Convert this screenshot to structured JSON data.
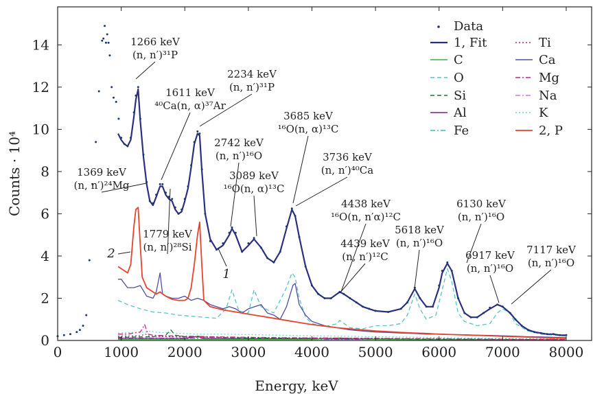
{
  "chart_data": {
    "type": "line",
    "xlabel": "Energy, keV",
    "ylabel": "Counts · 10⁴",
    "xlim": [
      0,
      8400
    ],
    "ylim": [
      0,
      15.8
    ],
    "xticks": [
      0,
      1000,
      2000,
      3000,
      4000,
      5000,
      6000,
      7000,
      8000
    ],
    "yticks": [
      0,
      2,
      4,
      6,
      8,
      10,
      12,
      14
    ],
    "grid": false,
    "legend_position": "top-right",
    "legend": [
      {
        "key": "data",
        "label": "Data"
      },
      {
        "key": "fit",
        "label": "1, Fit"
      },
      {
        "key": "C",
        "label": "C"
      },
      {
        "key": "O",
        "label": "O"
      },
      {
        "key": "Si",
        "label": "Si"
      },
      {
        "key": "Al",
        "label": "Al"
      },
      {
        "key": "Fe",
        "label": "Fe"
      },
      {
        "key": "Ti",
        "label": "Ti"
      },
      {
        "key": "Ca",
        "label": "Ca"
      },
      {
        "key": "Mg",
        "label": "Mg"
      },
      {
        "key": "Na",
        "label": "Na"
      },
      {
        "key": "K",
        "label": "K"
      },
      {
        "key": "P",
        "label": "2, P"
      }
    ],
    "colors": {
      "data": "#1b3a6b",
      "fit": "#2b2f7f",
      "C": "#3cb043",
      "O": "#56c2c6",
      "Si": "#1e6b32",
      "Al": "#7a1d8a",
      "Fe": "#3fbfa8",
      "Ti": "#9b2f7a",
      "Ca": "#4a4fa3",
      "Mg": "#c0247a",
      "Na": "#c77ad6",
      "K": "#6ccfe0",
      "P": "#e8412c"
    },
    "series": [
      {
        "key": "data",
        "style": "dots",
        "x": [
          0,
          100,
          200,
          300,
          350,
          400,
          450,
          500,
          550,
          600,
          650,
          700,
          720,
          740,
          760,
          780,
          800,
          820,
          850,
          880,
          920,
          960,
          1000,
          1050,
          1100,
          1150,
          1200,
          1230,
          1266,
          1300,
          1350,
          1400,
          1450,
          1500,
          1550,
          1611,
          1650,
          1700,
          1750,
          1800,
          1850,
          1900,
          1950,
          2000,
          2050,
          2100,
          2150,
          2200,
          2234,
          2270,
          2320,
          2400,
          2500,
          2600,
          2700,
          2742,
          2800,
          2900,
          3000,
          3089,
          3200,
          3300,
          3400,
          3500,
          3600,
          3685,
          3736,
          3800,
          3900,
          4000,
          4100,
          4200,
          4300,
          4438,
          4500,
          4600,
          4700,
          4800,
          4900,
          5000,
          5200,
          5400,
          5500,
          5618,
          5700,
          5800,
          5900,
          6000,
          6050,
          6130,
          6200,
          6300,
          6400,
          6500,
          6600,
          6700,
          6800,
          6917,
          7000,
          7117,
          7200,
          7300,
          7400,
          7500,
          7600,
          7700,
          7800,
          7900,
          8000
        ],
        "y": [
          0.2,
          0.25,
          0.3,
          0.4,
          0.5,
          0.7,
          1.2,
          3.8,
          7.4,
          9.4,
          11.8,
          14.2,
          14.3,
          14.9,
          14.1,
          14.5,
          14.1,
          13.5,
          12.0,
          11.5,
          11.3,
          10.5,
          9.6,
          9.3,
          9.2,
          9.6,
          10.8,
          11.6,
          12.0,
          10.5,
          8.8,
          7.5,
          6.6,
          6.5,
          6.9,
          7.4,
          7.4,
          7.0,
          6.8,
          6.7,
          6.3,
          6.0,
          6.2,
          6.7,
          7.3,
          8.3,
          9.4,
          9.9,
          9.8,
          8.1,
          6.0,
          4.7,
          4.3,
          4.6,
          5.1,
          5.35,
          5.1,
          4.2,
          4.6,
          4.85,
          4.4,
          3.9,
          3.7,
          4.2,
          5.4,
          6.25,
          5.9,
          4.9,
          3.5,
          2.6,
          2.2,
          2.0,
          2.0,
          2.3,
          2.2,
          2.0,
          1.8,
          1.6,
          1.5,
          1.4,
          1.35,
          1.5,
          1.8,
          2.5,
          2.0,
          1.6,
          1.6,
          2.6,
          3.3,
          3.7,
          3.3,
          2.0,
          1.3,
          1.1,
          1.1,
          1.3,
          1.55,
          1.7,
          1.6,
          1.3,
          1.0,
          0.7,
          0.5,
          0.4,
          0.35,
          0.3,
          0.3,
          0.25,
          0.25
        ]
      },
      {
        "key": "fit",
        "style": "solid",
        "x": [
          950,
          1000,
          1050,
          1100,
          1150,
          1200,
          1230,
          1266,
          1300,
          1350,
          1400,
          1450,
          1500,
          1550,
          1611,
          1650,
          1700,
          1750,
          1800,
          1850,
          1900,
          1950,
          2000,
          2050,
          2100,
          2150,
          2200,
          2234,
          2270,
          2320,
          2400,
          2500,
          2600,
          2700,
          2742,
          2800,
          2900,
          3000,
          3089,
          3200,
          3300,
          3400,
          3500,
          3600,
          3685,
          3736,
          3800,
          3900,
          4000,
          4100,
          4200,
          4300,
          4438,
          4500,
          4600,
          4700,
          4800,
          4900,
          5000,
          5200,
          5400,
          5500,
          5618,
          5700,
          5800,
          5900,
          6000,
          6050,
          6130,
          6200,
          6300,
          6400,
          6500,
          6600,
          6700,
          6800,
          6917,
          7000,
          7117,
          7200,
          7300,
          7400,
          7500,
          7600,
          7700,
          7800,
          7900,
          8000
        ],
        "y": [
          9.8,
          9.5,
          9.3,
          9.2,
          9.5,
          10.6,
          11.4,
          11.9,
          10.4,
          8.7,
          7.4,
          6.6,
          6.4,
          6.8,
          7.3,
          7.3,
          6.9,
          6.7,
          6.6,
          6.2,
          6.0,
          6.1,
          6.6,
          7.2,
          8.2,
          9.3,
          9.8,
          9.7,
          8.0,
          6.0,
          4.8,
          4.3,
          4.5,
          5.0,
          5.3,
          5.0,
          4.2,
          4.5,
          4.8,
          4.4,
          3.9,
          3.7,
          4.2,
          5.3,
          6.2,
          5.9,
          4.9,
          3.5,
          2.6,
          2.2,
          2.0,
          2.0,
          2.3,
          2.2,
          2.0,
          1.8,
          1.6,
          1.5,
          1.4,
          1.35,
          1.5,
          1.8,
          2.45,
          2.0,
          1.6,
          1.6,
          2.5,
          3.2,
          3.65,
          3.3,
          2.0,
          1.3,
          1.1,
          1.1,
          1.3,
          1.5,
          1.7,
          1.6,
          1.3,
          1.0,
          0.7,
          0.5,
          0.4,
          0.35,
          0.3,
          0.3,
          0.25,
          0.25
        ]
      },
      {
        "key": "P",
        "style": "solid",
        "x": [
          950,
          1000,
          1050,
          1100,
          1150,
          1200,
          1230,
          1266,
          1300,
          1330,
          1400,
          1500,
          1550,
          1611,
          1650,
          1700,
          1800,
          1900,
          2000,
          2050,
          2100,
          2150,
          2200,
          2234,
          2270,
          2300,
          2400,
          2600,
          2800,
          3000,
          3200,
          3400,
          3600,
          3800,
          4000,
          4200,
          4400,
          4600,
          4800,
          5000,
          5200,
          5400,
          5600,
          5800,
          6000,
          6200,
          6400,
          6600,
          6800,
          7000,
          7200,
          7400,
          7600,
          7800,
          8000
        ],
        "y": [
          3.5,
          3.4,
          3.3,
          3.2,
          3.6,
          5.4,
          6.2,
          6.3,
          4.5,
          3.0,
          2.5,
          2.3,
          2.2,
          2.3,
          2.2,
          2.1,
          1.95,
          1.9,
          1.9,
          2.0,
          2.5,
          3.6,
          5.0,
          5.6,
          3.5,
          1.9,
          1.6,
          1.45,
          1.35,
          1.25,
          1.15,
          1.05,
          0.95,
          0.85,
          0.75,
          0.68,
          0.6,
          0.55,
          0.5,
          0.45,
          0.42,
          0.38,
          0.35,
          0.33,
          0.3,
          0.28,
          0.26,
          0.24,
          0.22,
          0.2,
          0.18,
          0.16,
          0.14,
          0.12,
          0.1
        ]
      },
      {
        "key": "O",
        "style": "dashed",
        "x": [
          950,
          1100,
          1300,
          1500,
          1700,
          1900,
          2100,
          2300,
          2500,
          2650,
          2742,
          2850,
          3000,
          3089,
          3200,
          3400,
          3600,
          3685,
          3736,
          3800,
          3900,
          4000,
          4200,
          4400,
          4438,
          4600,
          4800,
          5000,
          5200,
          5400,
          5500,
          5618,
          5700,
          5800,
          5950,
          6050,
          6130,
          6200,
          6300,
          6400,
          6600,
          6800,
          6917,
          7000,
          7117,
          7200,
          7400,
          7600,
          7800,
          8000
        ],
        "y": [
          1.9,
          1.7,
          1.5,
          1.35,
          1.3,
          1.2,
          1.15,
          1.1,
          1.05,
          1.5,
          2.4,
          1.4,
          1.3,
          2.4,
          1.6,
          1.3,
          2.5,
          3.2,
          3.0,
          2.0,
          1.1,
          0.8,
          0.65,
          0.8,
          0.95,
          0.6,
          0.55,
          0.7,
          0.7,
          0.8,
          1.2,
          2.2,
          1.5,
          1.0,
          1.2,
          2.4,
          3.4,
          2.8,
          1.3,
          0.9,
          0.7,
          0.8,
          1.3,
          1.5,
          1.3,
          0.8,
          0.45,
          0.3,
          0.25,
          0.2
        ]
      },
      {
        "key": "Ca",
        "style": "solid",
        "x": [
          950,
          1000,
          1100,
          1200,
          1300,
          1400,
          1500,
          1550,
          1611,
          1650,
          1700,
          1800,
          1900,
          2000,
          2100,
          2200,
          2300,
          2400,
          2500,
          2600,
          2700,
          2800,
          2900,
          3000,
          3100,
          3200,
          3300,
          3400,
          3500,
          3600,
          3700,
          3736,
          3800,
          3900,
          4000,
          4200,
          4400,
          4600,
          4800,
          5000,
          5200,
          5400,
          5600,
          5800,
          6000,
          6200,
          6400,
          6600,
          6800,
          7000,
          7200,
          7400,
          7600,
          7800,
          8000
        ],
        "y": [
          2.9,
          2.9,
          2.5,
          2.5,
          2.6,
          2.1,
          2.0,
          2.3,
          3.2,
          2.2,
          2.1,
          2.0,
          2.0,
          2.1,
          1.9,
          2.0,
          1.9,
          1.7,
          1.6,
          1.5,
          1.6,
          1.5,
          1.3,
          1.5,
          1.6,
          1.7,
          1.3,
          1.2,
          1.0,
          1.6,
          2.6,
          2.7,
          1.7,
          1.2,
          0.9,
          0.7,
          0.6,
          0.5,
          0.45,
          0.4,
          0.38,
          0.35,
          0.33,
          0.3,
          0.3,
          0.28,
          0.27,
          0.25,
          0.24,
          0.22,
          0.2,
          0.18,
          0.17,
          0.15,
          0.13
        ]
      },
      {
        "key": "Mg",
        "style": "dashdot",
        "x": [
          950,
          1100,
          1200,
          1300,
          1369,
          1420,
          1500,
          1700,
          2000,
          2400,
          3000,
          4000,
          5000,
          6000,
          7000,
          8000
        ],
        "y": [
          0.3,
          0.3,
          0.35,
          0.4,
          0.75,
          0.3,
          0.25,
          0.22,
          0.2,
          0.18,
          0.15,
          0.12,
          0.1,
          0.08,
          0.06,
          0.05
        ]
      },
      {
        "key": "Si",
        "style": "dashed",
        "x": [
          950,
          1500,
          1700,
          1779,
          1850,
          2000,
          2500,
          3000,
          4000,
          5000,
          6000,
          7000,
          8000
        ],
        "y": [
          0.15,
          0.18,
          0.25,
          0.5,
          0.25,
          0.18,
          0.15,
          0.12,
          0.1,
          0.08,
          0.06,
          0.05,
          0.04
        ]
      },
      {
        "key": "K",
        "style": "dotted",
        "x": [
          950,
          1200,
          1400,
          1460,
          1520,
          1800,
          2200,
          2600,
          3000,
          4000,
          5000,
          6000,
          7000,
          8000
        ],
        "y": [
          0.35,
          0.38,
          0.4,
          0.45,
          0.4,
          0.35,
          0.3,
          0.3,
          0.28,
          0.22,
          0.18,
          0.14,
          0.1,
          0.08
        ]
      },
      {
        "key": "Ti",
        "style": "dotted",
        "x": [
          950,
          1300,
          1380,
          1450,
          2000,
          3000,
          4000,
          5000,
          6000,
          7000,
          8000
        ],
        "y": [
          0.2,
          0.22,
          0.3,
          0.2,
          0.16,
          0.14,
          0.12,
          0.1,
          0.08,
          0.06,
          0.05
        ]
      },
      {
        "key": "Na",
        "style": "dashdot",
        "x": [
          950,
          1500,
          2000,
          2500,
          3000,
          4000,
          5000,
          6000,
          7000,
          8000
        ],
        "y": [
          0.12,
          0.12,
          0.11,
          0.1,
          0.09,
          0.08,
          0.07,
          0.06,
          0.05,
          0.04
        ]
      },
      {
        "key": "Al",
        "style": "solid",
        "x": [
          950,
          1500,
          2000,
          2211,
          2300,
          3000,
          4000,
          5000,
          6000,
          7000,
          8000
        ],
        "y": [
          0.1,
          0.1,
          0.09,
          0.2,
          0.09,
          0.08,
          0.07,
          0.06,
          0.05,
          0.04,
          0.03
        ]
      },
      {
        "key": "Fe",
        "style": "dashdot",
        "x": [
          950,
          1500,
          2000,
          3000,
          4000,
          5000,
          6000,
          7000,
          8000
        ],
        "y": [
          0.08,
          0.08,
          0.07,
          0.06,
          0.05,
          0.05,
          0.04,
          0.03,
          0.03
        ]
      },
      {
        "key": "C",
        "style": "solid",
        "x": [
          950,
          2000,
          3000,
          4000,
          4439,
          5000,
          6000,
          7000,
          8000
        ],
        "y": [
          0.05,
          0.05,
          0.05,
          0.05,
          0.12,
          0.05,
          0.04,
          0.03,
          0.03
        ]
      }
    ],
    "annotations": [
      {
        "lines": [
          "1266 keV",
          "(n, n′)³¹P"
        ],
        "x": 1266,
        "y": 12.0
      },
      {
        "lines": [
          "1611 keV",
          "⁴⁰Ca(n, α)³⁷Ar"
        ],
        "x": 1611,
        "y": 7.4
      },
      {
        "lines": [
          "2234 keV",
          "(n, n′)³¹P"
        ],
        "x": 2234,
        "y": 9.9
      },
      {
        "lines": [
          "2742 keV",
          "(n, n′)¹⁶O"
        ],
        "x": 2742,
        "y": 5.35
      },
      {
        "lines": [
          "3089 keV",
          "¹⁶O(n, α)¹³C"
        ],
        "x": 3089,
        "y": 4.85
      },
      {
        "lines": [
          "3685 keV",
          "¹⁶O(n, α)¹³C"
        ],
        "x": 3685,
        "y": 6.25
      },
      {
        "lines": [
          "3736 keV",
          "(n, n′)⁴⁰Ca"
        ],
        "x": 3736,
        "y": 6.0
      },
      {
        "lines": [
          "1369 keV",
          "(n, n′)²⁴Mg"
        ],
        "x": 1369,
        "y": 7.9
      },
      {
        "lines": [
          "1779 keV",
          "(n, n′)²⁸Si"
        ],
        "x": 1779,
        "y": 6.6
      },
      {
        "lines": [
          "4438 keV",
          "¹⁶O(n, n′α)¹²C"
        ],
        "x": 4438,
        "y": 2.25
      },
      {
        "lines": [
          "4439 keV",
          "(n, n′)¹²C"
        ],
        "x": 4439,
        "y": 2.15
      },
      {
        "lines": [
          "5618 keV",
          "(n, n′)¹⁶O"
        ],
        "x": 5618,
        "y": 2.45
      },
      {
        "lines": [
          "6130 keV",
          "(n, n′)¹⁶O"
        ],
        "x": 6130,
        "y": 3.65
      },
      {
        "lines": [
          "6917 keV",
          "(n, n′)¹⁶O"
        ],
        "x": 6917,
        "y": 1.6
      },
      {
        "lines": [
          "7117 keV",
          "(n, n′)¹⁶O"
        ],
        "x": 7117,
        "y": 1.3
      }
    ],
    "curve_labels": [
      {
        "text": "2",
        "x": 1130,
        "y": 4.0
      },
      {
        "text": "1",
        "x": 2600,
        "y": 4.3
      }
    ]
  }
}
